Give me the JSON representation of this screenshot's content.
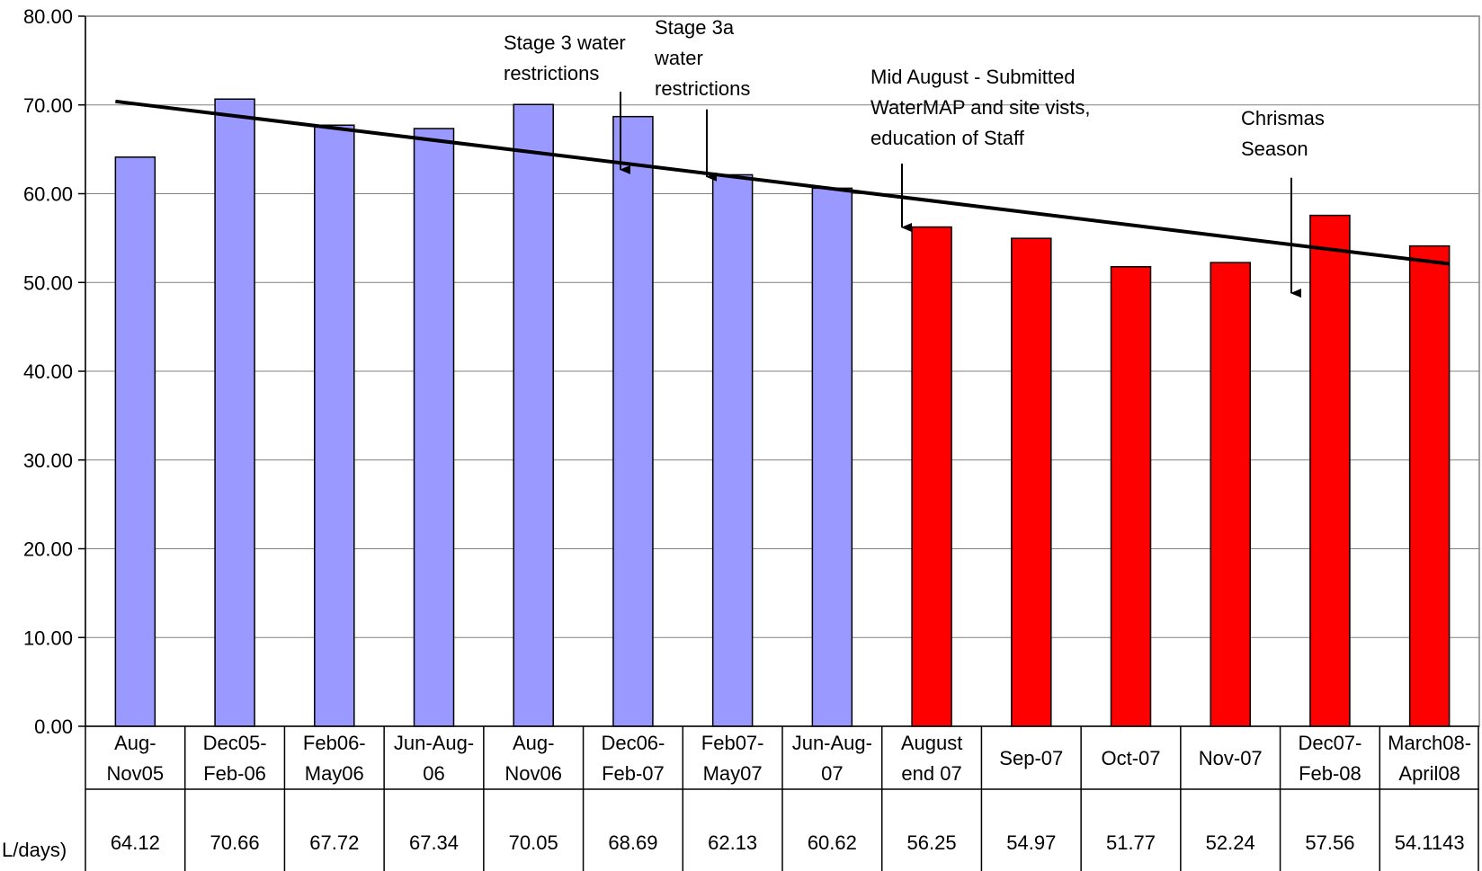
{
  "chart_data": {
    "type": "bar",
    "categories": [
      [
        "Aug-",
        "Nov05"
      ],
      [
        "Dec05-",
        "Feb-06"
      ],
      [
        "Feb06-",
        "May06"
      ],
      [
        "Jun-Aug-",
        "06"
      ],
      [
        "Aug-",
        "Nov06"
      ],
      [
        "Dec06-",
        "Feb-07"
      ],
      [
        "Feb07-",
        "May07"
      ],
      [
        "Jun-Aug-",
        "07"
      ],
      [
        "August",
        "end 07"
      ],
      [
        "Sep-07"
      ],
      [
        "Oct-07"
      ],
      [
        "Nov-07"
      ],
      [
        "Dec07-",
        "Feb-08"
      ],
      [
        "March08-",
        "April08"
      ]
    ],
    "values": [
      64.12,
      70.66,
      67.72,
      67.34,
      70.05,
      68.69,
      62.13,
      60.62,
      56.25,
      54.97,
      51.77,
      52.24,
      57.56,
      54.1143
    ],
    "value_labels": [
      "64.12",
      "70.66",
      "67.72",
      "67.34",
      "70.05",
      "68.69",
      "62.13",
      "60.62",
      "56.25",
      "54.97",
      "51.77",
      "52.24",
      "57.56",
      "54.1143"
    ],
    "series_label": "L/days)",
    "bar_colors": [
      "#9999FF",
      "#9999FF",
      "#9999FF",
      "#9999FF",
      "#9999FF",
      "#9999FF",
      "#9999FF",
      "#9999FF",
      "#FF0000",
      "#FF0000",
      "#FF0000",
      "#FF0000",
      "#FF0000",
      "#FF0000"
    ],
    "ylim": [
      0,
      80
    ],
    "yticks": [
      "0.00",
      "10.00",
      "20.00",
      "30.00",
      "40.00",
      "50.00",
      "60.00",
      "70.00",
      "80.00"
    ],
    "grid": true,
    "trendline": {
      "start": 70.4,
      "end": 52.1,
      "color": "#000000"
    },
    "annotations": [
      {
        "lines": [
          "Stage 3 water",
          "restrictions"
        ],
        "category_index": 5,
        "arrow_from": 71.5,
        "arrow_to": 62.7
      },
      {
        "lines": [
          "Stage 3a",
          "water",
          "restrictions"
        ],
        "category_index": 6,
        "arrow_from": 69.5,
        "arrow_to": 61.9
      },
      {
        "lines": [
          "Mid August - Submitted",
          "WaterMAP and site vists,",
          "education of Staff"
        ],
        "category_index": 8,
        "arrow_from": 63.4,
        "arrow_to": 56.2
      },
      {
        "lines": [
          "Chrismas",
          "Season"
        ],
        "category_index": 12,
        "arrow_from": 61.8,
        "arrow_to": 48.8
      }
    ]
  }
}
